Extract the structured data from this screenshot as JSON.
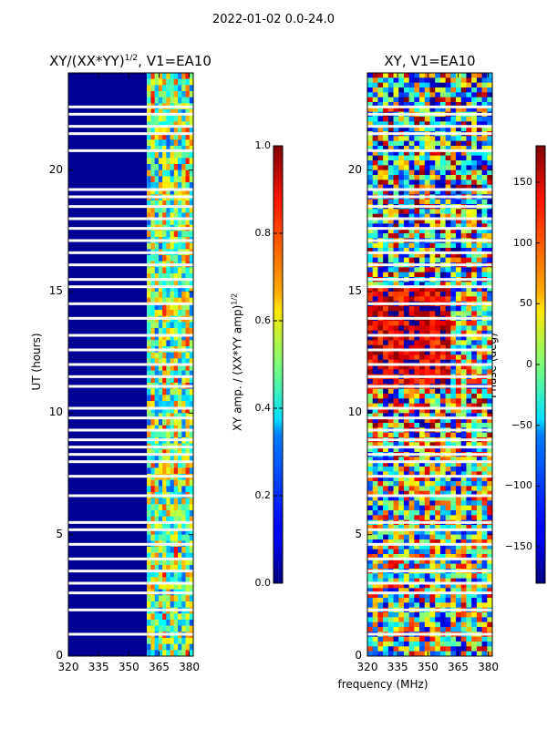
{
  "figure_title": "2022-01-02 0.0-24.0",
  "chart_data": [
    {
      "type": "heatmap",
      "title": "XY/(XX*YY)^1/2, V1=EA10",
      "title_main": "XY/(XX*YY)",
      "title_sup": "1/2",
      "title_rest": ", V1=EA10",
      "xlabel": "",
      "ylabel": "UT (hours)",
      "xlim": [
        320,
        382
      ],
      "ylim": [
        0,
        24
      ],
      "xticks": [
        320,
        335,
        350,
        365,
        380
      ],
      "yticks": [
        0,
        5,
        10,
        15,
        20
      ],
      "colorbar": {
        "label": "XY amp. / (XX*YY amp)^1/2",
        "label_main": "XY amp. / (XX*YY amp)",
        "label_sup": "1/2",
        "range": [
          0.0,
          1.0
        ],
        "ticks": [
          "0.0",
          "0.2",
          "0.4",
          "0.6",
          "0.8",
          "1.0"
        ],
        "colormap": "jet"
      },
      "cells": {
        "low_band": {
          "x_range": [
            320,
            359
          ],
          "value": 0.02
        },
        "high_band": {
          "x_range": [
            359,
            382
          ],
          "value_range": [
            0.2,
            0.75
          ]
        }
      },
      "flagged_hours": [
        0.9,
        1.9,
        2.6,
        3.0,
        3.5,
        4.0,
        4.6,
        5.2,
        5.5,
        6.6,
        7.4,
        8.0,
        8.3,
        8.6,
        8.9,
        9.3,
        9.8,
        10.2,
        11.1,
        11.5,
        12.0,
        12.6,
        13.2,
        13.9,
        14.5,
        15.2,
        15.5,
        16.1,
        16.6,
        17.1,
        17.6,
        18.0,
        18.5,
        18.9,
        19.2,
        20.8,
        21.5,
        21.8,
        22.3,
        22.6
      ]
    },
    {
      "type": "heatmap",
      "title": "XY, V1=EA10",
      "xlabel": "frequency (MHz)",
      "ylabel": "",
      "xlim": [
        320,
        382
      ],
      "ylim": [
        0,
        24
      ],
      "xticks": [
        320,
        335,
        350,
        365,
        380
      ],
      "yticks": [
        0,
        5,
        10,
        15,
        20
      ],
      "colorbar": {
        "label": "Phase (deg)",
        "range": [
          -180,
          180
        ],
        "ticks": [
          "−150",
          "−100",
          "−50",
          "0",
          "50",
          "100",
          "150"
        ],
        "tick_values": [
          -150,
          -100,
          -50,
          0,
          50,
          100,
          150
        ],
        "colormap": "jet"
      },
      "phase_regions": [
        {
          "hours": [
            0,
            8
          ],
          "description": "noisy mixed phase",
          "value": 0
        },
        {
          "hours": [
            8,
            11
          ],
          "description": "mixed, mostly positive",
          "value": 90
        },
        {
          "hours": [
            11,
            15.2
          ],
          "description": "mostly ~150 deg for 320-352 MHz",
          "value": 150
        },
        {
          "hours": [
            15.2,
            24
          ],
          "description": "mixed, mostly negative",
          "value": -60
        }
      ],
      "flagged_hours": [
        0.9,
        1.9,
        2.6,
        3.0,
        3.5,
        4.0,
        4.6,
        5.2,
        5.5,
        6.6,
        7.4,
        8.0,
        8.3,
        8.6,
        8.9,
        9.3,
        9.8,
        10.2,
        11.1,
        11.5,
        12.0,
        12.6,
        13.2,
        13.9,
        14.5,
        15.2,
        15.5,
        16.1,
        16.6,
        17.1,
        17.6,
        18.0,
        18.5,
        18.9,
        19.2,
        20.8,
        21.5,
        21.8,
        22.3,
        22.6
      ]
    }
  ]
}
